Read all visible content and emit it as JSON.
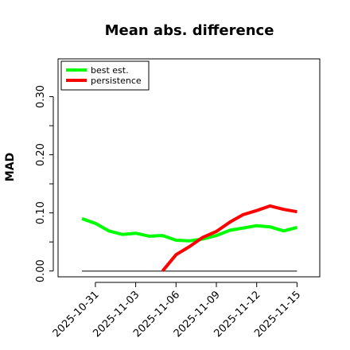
{
  "chart_data": {
    "type": "line",
    "title": "Mean abs. difference",
    "xlabel": "",
    "ylabel": "MAD",
    "x": [
      "2025-10-30",
      "2025-10-31",
      "2025-11-01",
      "2025-11-02",
      "2025-11-03",
      "2025-11-04",
      "2025-11-05",
      "2025-11-06",
      "2025-11-07",
      "2025-11-08",
      "2025-11-09",
      "2025-11-10",
      "2025-11-11",
      "2025-11-12",
      "2025-11-13",
      "2025-11-14",
      "2025-11-15"
    ],
    "x_ticks": [
      "2025-10-31",
      "2025-11-03",
      "2025-11-06",
      "2025-11-09",
      "2025-11-12",
      "2025-11-15"
    ],
    "y_ticks": [
      "0.00",
      "0.10",
      "0.20",
      "0.30"
    ],
    "y_tick_values": [
      0.0,
      0.1,
      0.2,
      0.3
    ],
    "ylim": [
      -0.01,
      0.365
    ],
    "series": [
      {
        "name": "best est.",
        "color": "#00ff00",
        "values": [
          0.09,
          0.082,
          0.069,
          0.063,
          0.065,
          0.06,
          0.061,
          0.053,
          0.052,
          0.055,
          0.061,
          0.07,
          0.074,
          0.078,
          0.076,
          0.069,
          0.075
        ]
      },
      {
        "name": "persistence",
        "color": "#ff0000",
        "values": [
          null,
          null,
          null,
          null,
          null,
          null,
          0.0,
          0.028,
          0.042,
          0.058,
          0.068,
          0.084,
          0.097,
          0.104,
          0.112,
          0.106,
          0.102
        ]
      }
    ],
    "reference_line": {
      "y": 0.0,
      "from": "2025-10-30",
      "to": "2025-11-15",
      "color": "#555555"
    },
    "legend": {
      "position": "top-left"
    },
    "grid": false
  }
}
